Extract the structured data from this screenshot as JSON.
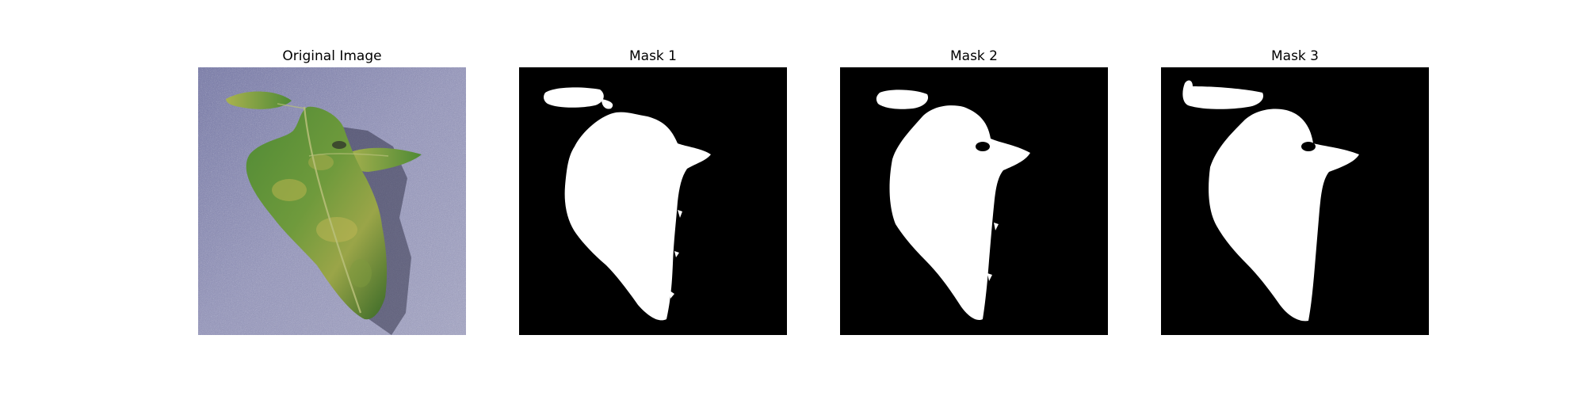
{
  "figure": {
    "panels": [
      {
        "title": "Original Image"
      },
      {
        "title": "Mask 1"
      },
      {
        "title": "Mask 2"
      },
      {
        "title": "Mask 3"
      }
    ]
  },
  "colors": {
    "photo_background": "#8f90b4",
    "leaf_dark": "#2f5a22",
    "leaf_mid": "#4f8a35",
    "leaf_light": "#a9b24f",
    "mask_background": "#000000",
    "mask_foreground": "#ffffff"
  }
}
